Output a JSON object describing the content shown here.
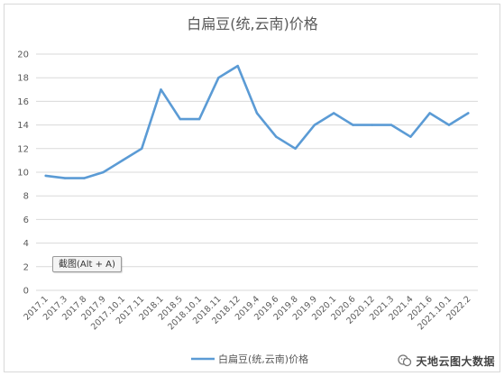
{
  "chart_data": {
    "type": "line",
    "title": "白扁豆(统,云南)价格",
    "categories": [
      "2017.1",
      "2017.3",
      "2017.8",
      "2017.9",
      "2017.10.1",
      "2017.11",
      "2018.1",
      "2018.5",
      "2018.10.1",
      "2018.11",
      "2018.12",
      "2019.4",
      "2019.6",
      "2019.8",
      "2019.9",
      "2020.1",
      "2020.6",
      "2020.12",
      "2021.3",
      "2021.4",
      "2021.6",
      "2021.10.1",
      "2022.2"
    ],
    "series": [
      {
        "name": "白扁豆(统,云南)价格",
        "values": [
          9.7,
          9.5,
          9.5,
          10,
          11,
          12,
          17,
          14.5,
          14.5,
          18,
          19,
          15,
          13,
          12,
          14,
          15,
          14,
          14,
          14,
          13,
          15,
          14,
          15
        ],
        "color": "#5b9bd5"
      }
    ],
    "yticks": [
      "0",
      "2",
      "4",
      "6",
      "8",
      "10",
      "12",
      "14",
      "16",
      "18",
      "20"
    ],
    "ylim": [
      0,
      20
    ],
    "grid": "horizontal",
    "legend": "bottom"
  },
  "overlay": {
    "screenshot_button": "截图(Alt + A)"
  },
  "watermark": {
    "text": "天地云图大数据",
    "icon": "wechat-official-account-icon"
  }
}
